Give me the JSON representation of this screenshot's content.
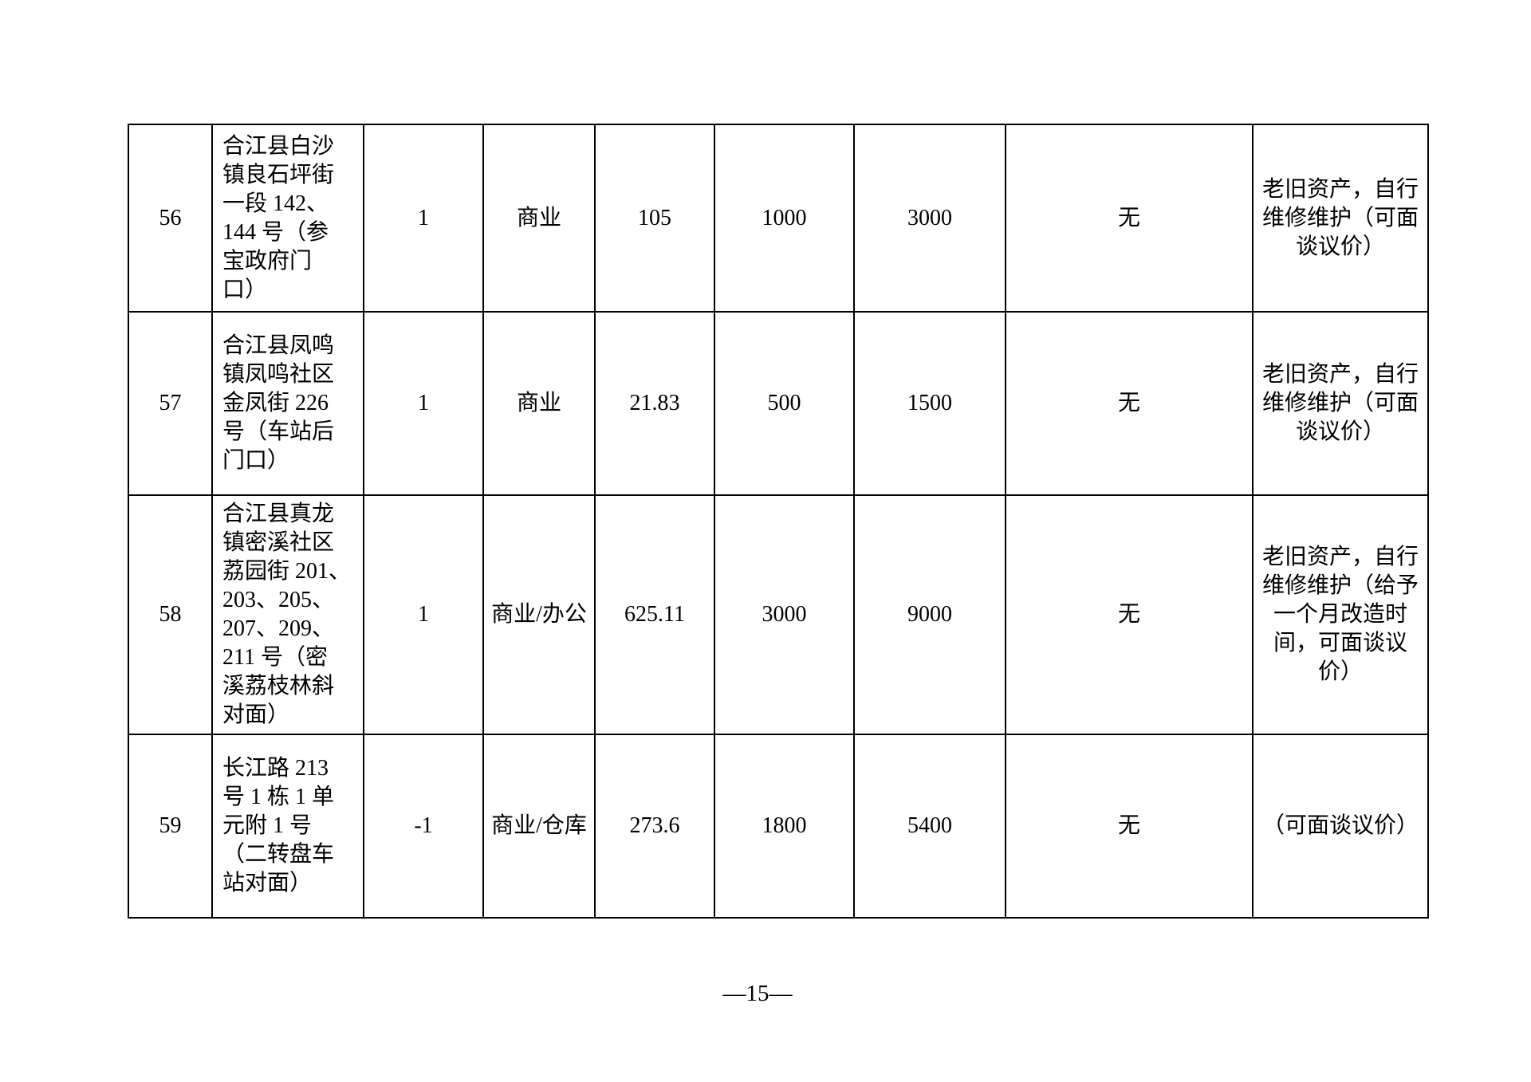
{
  "page": {
    "page_number": "—15—",
    "background_color": "#ffffff",
    "text_color": "#000000",
    "border_color": "#000000"
  },
  "table": {
    "rows": [
      {
        "cells": [
          "56",
          "合江县白沙\n镇良石坪街\n一段 142、\n144 号（参\n宝政府门\n口）",
          "1",
          "商业",
          "105",
          "1000",
          "3000",
          "无",
          "老旧资产，自行\n维修维护（可面\n谈议价）"
        ]
      },
      {
        "cells": [
          "57",
          "合江县凤鸣\n镇凤鸣社区\n金凤街 226\n号（车站后\n门口）",
          "1",
          "商业",
          "21.83",
          "500",
          "1500",
          "无",
          "老旧资产，自行\n维修维护（可面\n谈议价）"
        ]
      },
      {
        "cells": [
          "58",
          "合江县真龙\n镇密溪社区\n荔园街 201、\n203、205、\n207、209、\n211 号（密\n溪荔枝林斜\n对面）",
          "1",
          "商业/办公",
          "625.11",
          "3000",
          "9000",
          "无",
          "老旧资产，自行\n维修维护（给予\n一个月改造时\n间，可面谈议\n价）"
        ]
      },
      {
        "cells": [
          "59",
          "长江路 213\n号 1 栋 1 单\n元附 1 号\n（二转盘车\n站对面）",
          "-1",
          "商业/仓库",
          "273.6",
          "1800",
          "5400",
          "无",
          "（可面谈议价）"
        ]
      }
    ]
  }
}
